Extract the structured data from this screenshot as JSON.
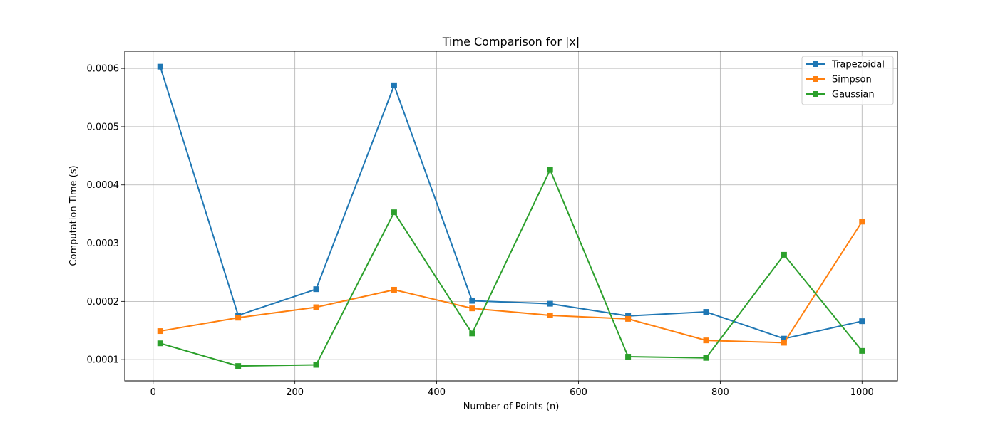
{
  "chart_data": {
    "type": "line",
    "title": "Time Comparison for |x|",
    "xlabel": "Number of Points (n)",
    "ylabel": "Computation Time (s)",
    "x": [
      10,
      120,
      230,
      340,
      450,
      560,
      670,
      780,
      890,
      1000
    ],
    "xlim": [
      -40,
      1050
    ],
    "ylim": [
      6.35e-05,
      0.0006295
    ],
    "xticks": [
      0,
      200,
      400,
      600,
      800,
      1000
    ],
    "xtick_labels": [
      "0",
      "200",
      "400",
      "600",
      "800",
      "1000"
    ],
    "yticks": [
      0.0001,
      0.0002,
      0.0003,
      0.0004,
      0.0005,
      0.0006
    ],
    "ytick_labels": [
      "0.0001",
      "0.0002",
      "0.0003",
      "0.0004",
      "0.0005",
      "0.0006"
    ],
    "grid": true,
    "legend_position": "top-right",
    "marker": "square",
    "series": [
      {
        "name": "Trapezoidal",
        "color": "#1f77b4",
        "values": [
          0.000603,
          0.000176,
          0.000221,
          0.000571,
          0.000201,
          0.000196,
          0.000175,
          0.000182,
          0.000136,
          0.000166
        ]
      },
      {
        "name": "Simpson",
        "color": "#ff7f0e",
        "values": [
          0.000149,
          0.000172,
          0.00019,
          0.00022,
          0.000188,
          0.000176,
          0.00017,
          0.000133,
          0.000129,
          0.000337
        ]
      },
      {
        "name": "Gaussian",
        "color": "#2ca02c",
        "values": [
          0.000128,
          8.9e-05,
          9.1e-05,
          0.000353,
          0.000145,
          0.000426,
          0.000105,
          0.000103,
          0.00028,
          0.000115
        ]
      }
    ]
  }
}
